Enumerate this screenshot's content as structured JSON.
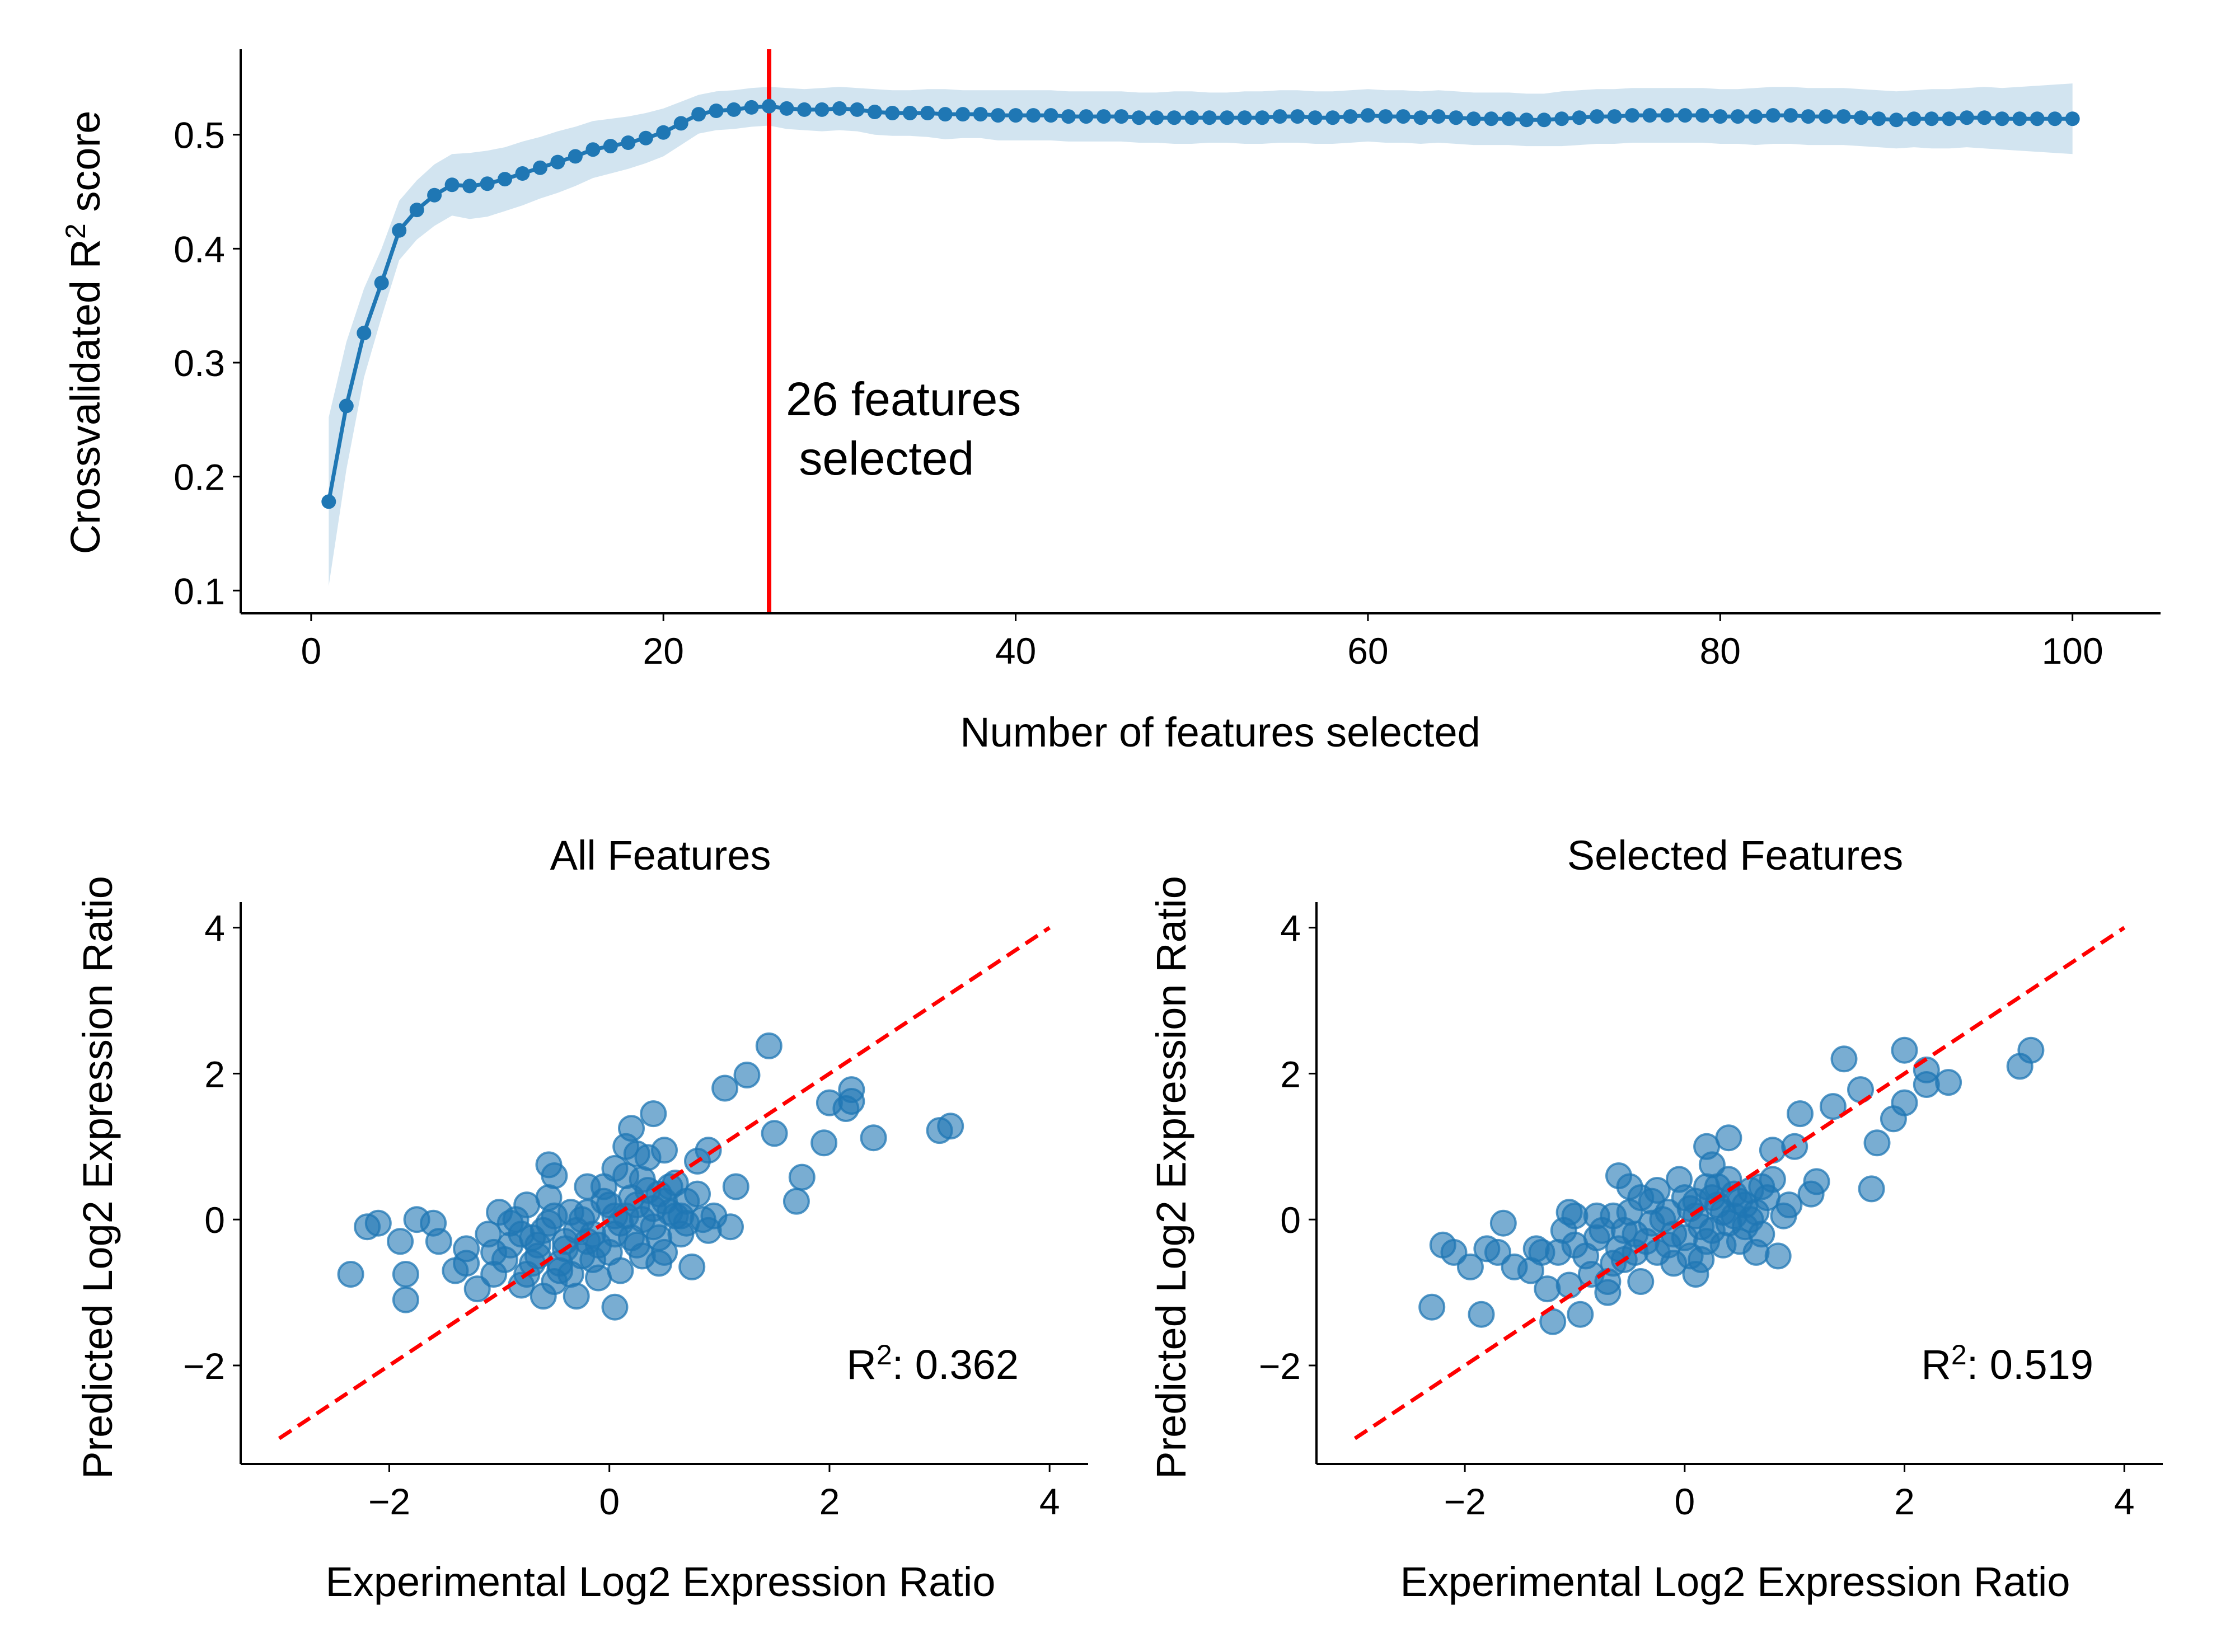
{
  "colors": {
    "series": "#1f77b4",
    "band": "#1f77b4",
    "vline": "#ff0000",
    "diagonal": "#ff0000",
    "axis": "#000000"
  },
  "chart_data": [
    {
      "type": "line",
      "title": "",
      "xlabel": "Number of features selected",
      "ylabel": "Crossvalidated R",
      "ylabel_sup": "2",
      "ylabel_suffix": " score",
      "xlim": [
        -4,
        105
      ],
      "ylim": [
        0.08,
        0.575
      ],
      "xticks": [
        0,
        20,
        40,
        60,
        80,
        100
      ],
      "yticks": [
        0.1,
        0.2,
        0.3,
        0.4,
        0.5
      ],
      "ytick_labels": [
        "0.1",
        "0.2",
        "0.3",
        "0.4",
        "0.5"
      ],
      "grid": false,
      "vline": {
        "x": 26,
        "label_line1": "26 features",
        "label_line2": " selected"
      },
      "x": [
        1,
        2,
        3,
        4,
        5,
        6,
        7,
        8,
        9,
        10,
        11,
        12,
        13,
        14,
        15,
        16,
        17,
        18,
        19,
        20,
        21,
        22,
        23,
        24,
        25,
        26,
        27,
        28,
        29,
        30,
        31,
        32,
        33,
        34,
        35,
        36,
        37,
        38,
        39,
        40,
        41,
        42,
        43,
        44,
        45,
        46,
        47,
        48,
        49,
        50,
        51,
        52,
        53,
        54,
        55,
        56,
        57,
        58,
        59,
        60,
        61,
        62,
        63,
        64,
        65,
        66,
        67,
        68,
        69,
        70,
        71,
        72,
        73,
        74,
        75,
        76,
        77,
        78,
        79,
        80,
        81,
        82,
        83,
        84,
        85,
        86,
        87,
        88,
        89,
        90,
        91,
        92,
        93,
        94,
        95,
        96,
        97,
        98,
        99,
        100
      ],
      "y": [
        0.178,
        0.262,
        0.326,
        0.37,
        0.416,
        0.434,
        0.447,
        0.456,
        0.455,
        0.457,
        0.461,
        0.466,
        0.471,
        0.476,
        0.481,
        0.487,
        0.49,
        0.493,
        0.497,
        0.502,
        0.51,
        0.518,
        0.521,
        0.522,
        0.524,
        0.525,
        0.523,
        0.522,
        0.522,
        0.523,
        0.522,
        0.52,
        0.519,
        0.519,
        0.519,
        0.518,
        0.518,
        0.518,
        0.517,
        0.517,
        0.517,
        0.517,
        0.516,
        0.516,
        0.516,
        0.516,
        0.515,
        0.515,
        0.515,
        0.515,
        0.515,
        0.515,
        0.515,
        0.515,
        0.516,
        0.516,
        0.515,
        0.515,
        0.516,
        0.517,
        0.516,
        0.516,
        0.515,
        0.516,
        0.515,
        0.514,
        0.514,
        0.514,
        0.513,
        0.513,
        0.514,
        0.515,
        0.516,
        0.516,
        0.517,
        0.517,
        0.517,
        0.517,
        0.517,
        0.516,
        0.516,
        0.516,
        0.517,
        0.517,
        0.516,
        0.516,
        0.516,
        0.515,
        0.514,
        0.513,
        0.514,
        0.514,
        0.514,
        0.515,
        0.515,
        0.514,
        0.514,
        0.514,
        0.514,
        0.514
      ],
      "band_upper": [
        0.252,
        0.318,
        0.365,
        0.4,
        0.442,
        0.46,
        0.474,
        0.483,
        0.484,
        0.486,
        0.489,
        0.494,
        0.498,
        0.503,
        0.507,
        0.512,
        0.514,
        0.516,
        0.519,
        0.523,
        0.529,
        0.535,
        0.538,
        0.539,
        0.541,
        0.542,
        0.541,
        0.54,
        0.541,
        0.542,
        0.541,
        0.54,
        0.539,
        0.539,
        0.54,
        0.54,
        0.539,
        0.539,
        0.539,
        0.539,
        0.539,
        0.539,
        0.538,
        0.538,
        0.538,
        0.538,
        0.537,
        0.537,
        0.538,
        0.538,
        0.537,
        0.537,
        0.538,
        0.538,
        0.539,
        0.539,
        0.538,
        0.538,
        0.539,
        0.54,
        0.539,
        0.539,
        0.538,
        0.539,
        0.538,
        0.537,
        0.537,
        0.537,
        0.536,
        0.536,
        0.538,
        0.539,
        0.54,
        0.54,
        0.541,
        0.541,
        0.541,
        0.541,
        0.541,
        0.54,
        0.54,
        0.541,
        0.542,
        0.542,
        0.541,
        0.541,
        0.541,
        0.54,
        0.539,
        0.538,
        0.539,
        0.54,
        0.54,
        0.541,
        0.542,
        0.541,
        0.542,
        0.543,
        0.544,
        0.545
      ],
      "band_lower": [
        0.104,
        0.206,
        0.287,
        0.34,
        0.39,
        0.408,
        0.42,
        0.429,
        0.426,
        0.428,
        0.433,
        0.438,
        0.444,
        0.449,
        0.455,
        0.462,
        0.466,
        0.47,
        0.475,
        0.481,
        0.491,
        0.501,
        0.504,
        0.505,
        0.507,
        0.508,
        0.505,
        0.504,
        0.503,
        0.504,
        0.503,
        0.5,
        0.499,
        0.499,
        0.498,
        0.496,
        0.497,
        0.497,
        0.495,
        0.495,
        0.495,
        0.495,
        0.494,
        0.494,
        0.494,
        0.494,
        0.493,
        0.493,
        0.492,
        0.492,
        0.493,
        0.493,
        0.492,
        0.492,
        0.493,
        0.493,
        0.492,
        0.492,
        0.493,
        0.494,
        0.493,
        0.493,
        0.492,
        0.493,
        0.492,
        0.491,
        0.491,
        0.491,
        0.49,
        0.49,
        0.49,
        0.491,
        0.492,
        0.492,
        0.493,
        0.493,
        0.493,
        0.493,
        0.493,
        0.492,
        0.492,
        0.491,
        0.492,
        0.492,
        0.491,
        0.491,
        0.491,
        0.49,
        0.489,
        0.488,
        0.489,
        0.488,
        0.488,
        0.489,
        0.488,
        0.487,
        0.486,
        0.485,
        0.484,
        0.483
      ]
    },
    {
      "type": "scatter",
      "title": "All Features",
      "xlabel": "Experimental Log2 Expression Ratio",
      "ylabel": "Predicted Log2 Expression Ratio",
      "xlim": [
        -3.35,
        4.35
      ],
      "ylim": [
        -3.35,
        4.35
      ],
      "xticks": [
        -2,
        0,
        2,
        4
      ],
      "yticks": [
        -2,
        0,
        2,
        4
      ],
      "tick_labels": [
        "−2",
        "0",
        "2",
        "4"
      ],
      "grid": false,
      "diagonal": {
        "from": [
          -3,
          -3
        ],
        "to": [
          4,
          4
        ]
      },
      "r2_label": "R",
      "r2_sup": "2",
      "r2_value": ": 0.362",
      "points": [
        [
          1.45,
          2.38
        ],
        [
          1.25,
          1.98
        ],
        [
          1.05,
          1.8
        ],
        [
          2.2,
          1.78
        ],
        [
          2.2,
          1.62
        ],
        [
          2.0,
          1.6
        ],
        [
          2.15,
          1.52
        ],
        [
          2.4,
          1.12
        ],
        [
          1.5,
          1.18
        ],
        [
          3.0,
          1.22
        ],
        [
          3.1,
          1.28
        ],
        [
          0.4,
          1.45
        ],
        [
          0.2,
          1.25
        ],
        [
          0.15,
          1.0
        ],
        [
          0.5,
          0.95
        ],
        [
          0.9,
          0.95
        ],
        [
          1.95,
          1.05
        ],
        [
          1.15,
          0.45
        ],
        [
          1.75,
          0.58
        ],
        [
          1.7,
          0.25
        ],
        [
          -0.5,
          0.6
        ],
        [
          -0.55,
          0.75
        ],
        [
          0.8,
          0.8
        ],
        [
          0.95,
          0.05
        ],
        [
          1.1,
          -0.1
        ],
        [
          0.8,
          0.35
        ],
        [
          -2.35,
          -0.75
        ],
        [
          -2.2,
          -0.1
        ],
        [
          -2.1,
          -0.05
        ],
        [
          -1.9,
          -0.3
        ],
        [
          -1.85,
          -0.75
        ],
        [
          -1.85,
          -1.1
        ],
        [
          -1.75,
          0.0
        ],
        [
          -1.6,
          -0.05
        ],
        [
          -1.55,
          -0.3
        ],
        [
          -1.4,
          -0.7
        ],
        [
          -1.3,
          -0.4
        ],
        [
          -1.3,
          -0.6
        ],
        [
          -1.2,
          -0.95
        ],
        [
          -1.1,
          -0.2
        ],
        [
          -1.05,
          -0.75
        ],
        [
          -1.0,
          0.1
        ],
        [
          -0.9,
          -0.35
        ],
        [
          -0.8,
          -0.9
        ],
        [
          -0.75,
          0.2
        ],
        [
          -0.7,
          -0.6
        ],
        [
          -0.6,
          -0.15
        ],
        [
          -0.6,
          -1.05
        ],
        [
          -0.55,
          0.3
        ],
        [
          -0.45,
          -0.7
        ],
        [
          -0.4,
          -0.3
        ],
        [
          -0.35,
          0.1
        ],
        [
          -0.3,
          -1.05
        ],
        [
          -0.25,
          -0.5
        ],
        [
          -0.2,
          0.45
        ],
        [
          -0.15,
          -0.2
        ],
        [
          -0.1,
          -0.8
        ],
        [
          -0.05,
          0.25
        ],
        [
          0.0,
          -0.45
        ],
        [
          0.05,
          0.05
        ],
        [
          0.05,
          -1.2
        ],
        [
          0.1,
          -0.7
        ],
        [
          0.15,
          0.6
        ],
        [
          0.2,
          -0.25
        ],
        [
          0.25,
          0.2
        ],
        [
          0.3,
          -0.5
        ],
        [
          0.35,
          0.85
        ],
        [
          0.4,
          -0.1
        ],
        [
          0.45,
          0.35
        ],
        [
          0.5,
          -0.45
        ],
        [
          0.55,
          0.1
        ],
        [
          0.6,
          0.5
        ],
        [
          0.65,
          -0.2
        ],
        [
          0.7,
          0.25
        ],
        [
          0.75,
          -0.65
        ],
        [
          0.85,
          0.0
        ],
        [
          0.9,
          -0.15
        ],
        [
          -0.95,
          -0.55
        ],
        [
          -0.85,
          0.0
        ],
        [
          -0.65,
          -0.35
        ],
        [
          -0.5,
          0.05
        ],
        [
          -0.45,
          -0.6
        ],
        [
          -0.3,
          -0.15
        ],
        [
          -0.2,
          0.1
        ],
        [
          -0.1,
          -0.35
        ],
        [
          0.0,
          0.2
        ],
        [
          0.1,
          -0.05
        ],
        [
          0.2,
          0.3
        ],
        [
          0.3,
          0.0
        ],
        [
          0.4,
          0.15
        ],
        [
          0.5,
          0.25
        ],
        [
          0.6,
          0.05
        ],
        [
          -0.8,
          -0.2
        ],
        [
          -0.65,
          -0.5
        ],
        [
          -0.55,
          -0.05
        ],
        [
          -0.4,
          -0.4
        ],
        [
          -0.25,
          0.0
        ],
        [
          -0.15,
          -0.55
        ],
        [
          0.05,
          -0.2
        ],
        [
          0.15,
          0.05
        ],
        [
          0.25,
          -0.35
        ],
        [
          0.35,
          0.4
        ],
        [
          0.45,
          -0.25
        ],
        [
          0.55,
          0.45
        ],
        [
          0.65,
          0.05
        ],
        [
          -1.05,
          -0.45
        ],
        [
          -0.9,
          -0.05
        ],
        [
          -0.7,
          -0.25
        ],
        [
          -0.35,
          -0.75
        ],
        [
          -0.05,
          0.45
        ],
        [
          0.3,
          0.55
        ],
        [
          0.7,
          -0.05
        ],
        [
          0.05,
          0.7
        ],
        [
          -0.2,
          -0.3
        ],
        [
          -0.5,
          -0.85
        ],
        [
          0.45,
          -0.6
        ],
        [
          -0.75,
          -0.75
        ],
        [
          0.25,
          0.9
        ]
      ]
    },
    {
      "type": "scatter",
      "title": "Selected Features",
      "xlabel": "Experimental Log2 Expression Ratio",
      "ylabel": "Predicted Log2 Expression Ratio",
      "xlim": [
        -3.35,
        4.35
      ],
      "ylim": [
        -3.35,
        4.35
      ],
      "xticks": [
        -2,
        0,
        2,
        4
      ],
      "yticks": [
        -2,
        0,
        2,
        4
      ],
      "tick_labels": [
        "−2",
        "0",
        "2",
        "4"
      ],
      "grid": false,
      "diagonal": {
        "from": [
          -3,
          -3
        ],
        "to": [
          4,
          4
        ]
      },
      "r2_label": "R",
      "r2_sup": "2",
      "r2_value": ": 0.519",
      "points": [
        [
          2.0,
          2.32
        ],
        [
          3.15,
          2.32
        ],
        [
          3.05,
          2.1
        ],
        [
          1.45,
          2.2
        ],
        [
          2.2,
          2.05
        ],
        [
          2.2,
          1.85
        ],
        [
          2.4,
          1.88
        ],
        [
          1.6,
          1.78
        ],
        [
          1.35,
          1.55
        ],
        [
          1.05,
          1.45
        ],
        [
          2.0,
          1.6
        ],
        [
          1.9,
          1.38
        ],
        [
          1.75,
          1.05
        ],
        [
          1.7,
          0.42
        ],
        [
          1.2,
          0.52
        ],
        [
          1.15,
          0.35
        ],
        [
          1.0,
          1.0
        ],
        [
          0.4,
          1.12
        ],
        [
          0.2,
          1.0
        ],
        [
          0.8,
          0.95
        ],
        [
          -0.5,
          0.45
        ],
        [
          -0.6,
          0.6
        ],
        [
          -2.3,
          -1.2
        ],
        [
          -2.2,
          -0.35
        ],
        [
          -2.1,
          -0.45
        ],
        [
          -1.95,
          -0.65
        ],
        [
          -1.85,
          -1.3
        ],
        [
          -1.8,
          -0.4
        ],
        [
          -1.7,
          -0.45
        ],
        [
          -1.65,
          -0.05
        ],
        [
          -1.55,
          -0.65
        ],
        [
          -1.4,
          -0.7
        ],
        [
          -1.35,
          -0.4
        ],
        [
          -1.3,
          -0.45
        ],
        [
          -1.25,
          -0.95
        ],
        [
          -1.2,
          -1.4
        ],
        [
          -1.1,
          -0.15
        ],
        [
          -1.05,
          -0.9
        ],
        [
          -1.0,
          0.05
        ],
        [
          -0.95,
          -1.3
        ],
        [
          -0.85,
          -0.75
        ],
        [
          -0.8,
          -0.25
        ],
        [
          -0.7,
          -1.0
        ],
        [
          -0.65,
          0.05
        ],
        [
          -0.55,
          -0.55
        ],
        [
          -0.45,
          -0.2
        ],
        [
          -0.4,
          -0.85
        ],
        [
          -0.3,
          0.25
        ],
        [
          -0.25,
          -0.45
        ],
        [
          -0.15,
          0.1
        ],
        [
          -0.1,
          -0.6
        ],
        [
          0.0,
          0.3
        ],
        [
          0.0,
          -0.25
        ],
        [
          0.1,
          0.05
        ],
        [
          0.15,
          -0.55
        ],
        [
          0.2,
          0.45
        ],
        [
          0.25,
          -0.15
        ],
        [
          0.3,
          0.2
        ],
        [
          0.35,
          -0.35
        ],
        [
          0.4,
          0.55
        ],
        [
          0.45,
          0.05
        ],
        [
          0.5,
          0.25
        ],
        [
          0.55,
          -0.1
        ],
        [
          0.6,
          0.4
        ],
        [
          0.65,
          0.1
        ],
        [
          0.7,
          -0.2
        ],
        [
          0.75,
          0.3
        ],
        [
          0.85,
          -0.5
        ],
        [
          0.9,
          0.05
        ],
        [
          0.95,
          0.2
        ],
        [
          -0.9,
          -0.5
        ],
        [
          -0.75,
          -0.15
        ],
        [
          -0.6,
          -0.4
        ],
        [
          -0.5,
          0.1
        ],
        [
          -0.35,
          -0.3
        ],
        [
          -0.2,
          0.0
        ],
        [
          -0.1,
          -0.2
        ],
        [
          0.05,
          0.15
        ],
        [
          0.15,
          -0.1
        ],
        [
          0.25,
          0.3
        ],
        [
          0.35,
          0.1
        ],
        [
          0.45,
          0.35
        ],
        [
          0.55,
          0.2
        ],
        [
          -0.8,
          0.05
        ],
        [
          -0.65,
          -0.6
        ],
        [
          -0.45,
          -0.45
        ],
        [
          -0.3,
          -0.05
        ],
        [
          -0.15,
          -0.35
        ],
        [
          0.1,
          0.25
        ],
        [
          0.2,
          -0.3
        ],
        [
          0.3,
          0.45
        ],
        [
          0.4,
          -0.05
        ],
        [
          0.6,
          0.0
        ],
        [
          0.7,
          0.45
        ],
        [
          -1.15,
          -0.45
        ],
        [
          -1.0,
          -0.35
        ],
        [
          -0.55,
          -0.15
        ],
        [
          -0.25,
          0.4
        ],
        [
          0.05,
          -0.5
        ],
        [
          0.5,
          -0.3
        ],
        [
          0.8,
          0.55
        ],
        [
          -0.4,
          0.3
        ],
        [
          0.25,
          0.75
        ],
        [
          -0.7,
          -0.85
        ],
        [
          0.1,
          -0.75
        ],
        [
          -0.05,
          0.55
        ],
        [
          0.65,
          -0.45
        ],
        [
          -1.05,
          0.1
        ]
      ]
    }
  ]
}
